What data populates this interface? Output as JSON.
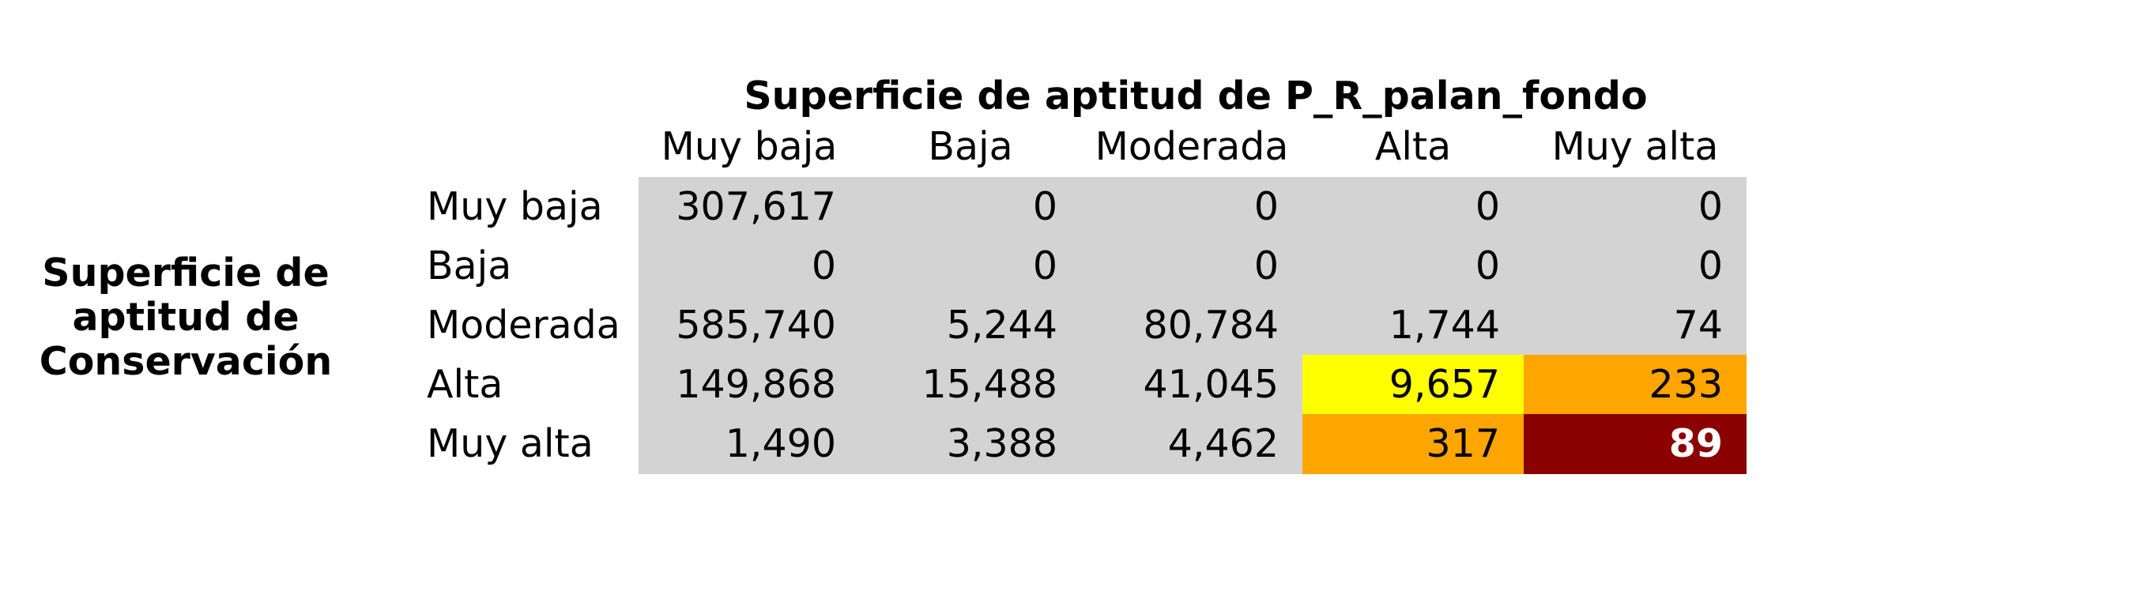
{
  "title": "Superficie de aptitud de P_R_palan_fondo",
  "row_title_lines": [
    "Superficie de",
    "aptitud de",
    "Conservación"
  ],
  "columns": [
    "Muy baja",
    "Baja",
    "Moderada",
    "Alta",
    "Muy alta"
  ],
  "rows": [
    {
      "label": "Muy baja",
      "values": [
        "307,617",
        "0",
        "0",
        "0",
        "0"
      ]
    },
    {
      "label": "Baja",
      "values": [
        "0",
        "0",
        "0",
        "0",
        "0"
      ]
    },
    {
      "label": "Moderada",
      "values": [
        "585,740",
        "5,244",
        "80,784",
        "1,744",
        "74"
      ]
    },
    {
      "label": "Alta",
      "values": [
        "149,868",
        "15,488",
        "41,045",
        "9,657",
        "233"
      ]
    },
    {
      "label": "Muy alta",
      "values": [
        "1,490",
        "3,388",
        "4,462",
        "317",
        "89"
      ]
    }
  ],
  "cell_colors": [
    [
      "#d3d3d3",
      "#d3d3d3",
      "#d3d3d3",
      "#d3d3d3",
      "#d3d3d3"
    ],
    [
      "#d3d3d3",
      "#d3d3d3",
      "#d3d3d3",
      "#d3d3d3",
      "#d3d3d3"
    ],
    [
      "#d3d3d3",
      "#d3d3d3",
      "#d3d3d3",
      "#d3d3d3",
      "#d3d3d3"
    ],
    [
      "#d3d3d3",
      "#d3d3d3",
      "#d3d3d3",
      "#ffff00",
      "#ffa500"
    ],
    [
      "#d3d3d3",
      "#d3d3d3",
      "#d3d3d3",
      "#ffa500",
      "#8b0000"
    ]
  ],
  "highlight_cell": {
    "row": 4,
    "col": 4,
    "text_color": "#ffffff",
    "bold": true
  }
}
